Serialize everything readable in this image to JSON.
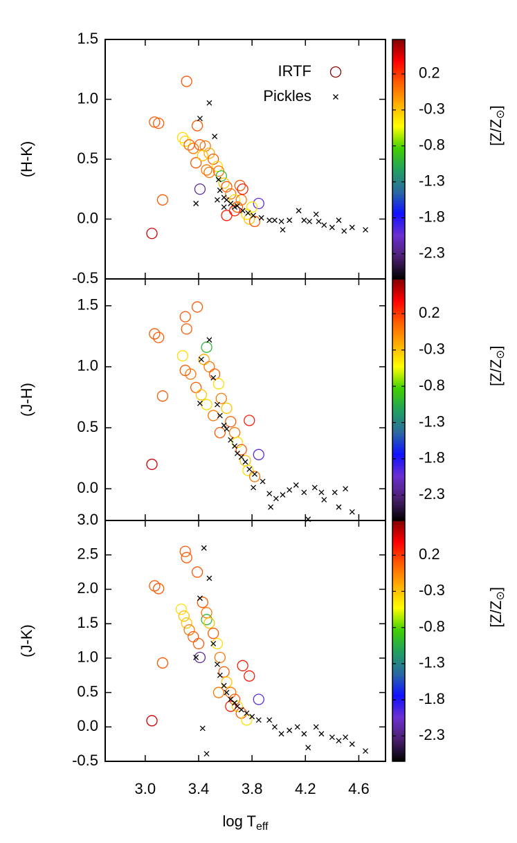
{
  "chart_data": [
    {
      "type": "scatter",
      "ylabel": "(H-K)",
      "legend": "top-right",
      "xlim": [
        2.7,
        4.8
      ],
      "xticks": [
        {
          "value": 3,
          "label": "3.0"
        },
        3.4,
        3.8,
        4.2,
        4.6
      ],
      "ylim": [
        -0.5,
        1.5
      ],
      "yticks": [
        -0.5,
        {
          "value": 0,
          "label": "0.0"
        },
        0.5,
        {
          "value": 1,
          "label": "1.0"
        },
        1.5
      ],
      "colorbar": {
        "label": "[Z/Z",
        "label_subscript": "⊙",
        "label_end": "]",
        "lim": [
          -2.65,
          0.68
        ],
        "ticks": [
          0.2,
          -0.3,
          -0.8,
          -1.3,
          -1.8,
          -2.3
        ],
        "colormap": [
          "#000000",
          "#4a2070",
          "#6a30d0",
          "#1010ff",
          "#2a6aa0",
          "#20a060",
          "#40d000",
          "#ffff00",
          "#ffb000",
          "#ff6000",
          "#ff0000",
          "#800000"
        ]
      },
      "series": [
        {
          "name": "IRTF",
          "marker": "circle",
          "color": "#8b0000",
          "x": [
            3.05,
            3.07,
            3.1,
            3.13,
            3.31,
            3.39,
            3.41,
            3.28,
            3.3,
            3.33,
            3.36,
            3.41,
            3.45,
            3.48,
            3.51,
            3.54,
            3.55,
            3.57,
            3.59,
            3.61,
            3.64,
            3.67,
            3.69,
            3.72,
            3.71,
            3.73,
            3.67,
            3.76,
            3.78,
            3.82,
            3.85,
            3.8,
            3.61,
            3.46,
            3.38,
            3.43,
            3.48
          ],
          "values": [
            -0.12,
            0.81,
            0.8,
            0.16,
            1.15,
            0.78,
            0.25,
            0.68,
            0.65,
            0.62,
            0.59,
            0.62,
            0.61,
            0.55,
            0.5,
            0.44,
            0.4,
            0.36,
            0.3,
            0.27,
            0.21,
            0.16,
            0.1,
            0.16,
            0.28,
            0.25,
            0.07,
            0.04,
            0.0,
            -0.02,
            0.13,
            0.1,
            0.03,
            0.41,
            0.47,
            0.53,
            0.39
          ],
          "z": [
            0.5,
            0.1,
            0.1,
            0.1,
            0.1,
            0.1,
            -2.2,
            -0.4,
            -0.4,
            0.1,
            0.0,
            0.1,
            0.0,
            -0.2,
            0.1,
            -0.4,
            0.0,
            -1.0,
            -0.3,
            0.1,
            0.0,
            -0.4,
            0.1,
            0.0,
            0.1,
            0.3,
            0.3,
            -0.4,
            -0.3,
            0.1,
            -2.0,
            -0.4,
            0.3,
            0.0,
            0.1,
            -0.3,
            0.0
          ]
        },
        {
          "name": "Pickles",
          "marker": "x",
          "color": "#000000",
          "x": [
            3.48,
            3.41,
            3.52,
            3.38,
            3.55,
            3.56,
            3.59,
            3.61,
            3.64,
            3.67,
            3.69,
            3.73,
            3.77,
            3.81,
            3.87,
            3.93,
            3.97,
            4.02,
            4.03,
            4.08,
            4.15,
            4.19,
            4.23,
            4.28,
            4.3,
            4.34,
            4.4,
            4.45,
            4.49,
            4.55,
            4.65,
            3.59,
            3.54
          ],
          "values": [
            0.97,
            0.84,
            0.69,
            0.13,
            0.33,
            0.24,
            0.18,
            0.16,
            0.13,
            0.1,
            0.11,
            0.07,
            0.05,
            0.03,
            0.01,
            -0.01,
            -0.01,
            -0.02,
            -0.09,
            -0.01,
            0.07,
            -0.01,
            -0.02,
            0.04,
            -0.02,
            -0.05,
            -0.07,
            -0.01,
            -0.1,
            -0.07,
            -0.09,
            0.1,
            0.16
          ]
        }
      ]
    },
    {
      "type": "scatter",
      "ylabel": "(J-H)",
      "xlim": [
        2.7,
        4.8
      ],
      "xticks": [
        {
          "value": 3,
          "label": "3.0"
        },
        3.4,
        3.8,
        4.2,
        4.6
      ],
      "ylim": [
        -0.26,
        1.72
      ],
      "yticks": [
        {
          "value": 0,
          "label": "0.0"
        },
        0.5,
        {
          "value": 1,
          "label": "1.0"
        },
        1.5
      ],
      "colorbar": {
        "label": "[Z/Z",
        "label_subscript": "⊙",
        "label_end": "]",
        "lim": [
          -2.65,
          0.68
        ],
        "ticks": [
          0.2,
          -0.3,
          -0.8,
          -1.3,
          -1.8,
          -2.3
        ],
        "colormap": [
          "#000000",
          "#4a2070",
          "#6a30d0",
          "#1010ff",
          "#2a6aa0",
          "#20a060",
          "#40d000",
          "#ffff00",
          "#ffb000",
          "#ff6000",
          "#ff0000",
          "#800000"
        ]
      },
      "series": [
        {
          "marker": "circle",
          "x": [
            3.05,
            3.07,
            3.1,
            3.13,
            3.3,
            3.31,
            3.39,
            3.46,
            3.28,
            3.3,
            3.34,
            3.38,
            3.42,
            3.44,
            3.48,
            3.52,
            3.55,
            3.57,
            3.61,
            3.64,
            3.67,
            3.69,
            3.72,
            3.75,
            3.78,
            3.77,
            3.82,
            3.85,
            3.56,
            3.51,
            3.46
          ],
          "values": [
            0.2,
            1.27,
            1.24,
            0.76,
            1.41,
            1.31,
            1.49,
            1.16,
            1.09,
            0.97,
            0.94,
            0.83,
            0.77,
            1.06,
            1.0,
            0.94,
            0.86,
            0.74,
            0.66,
            0.55,
            0.46,
            0.38,
            0.32,
            0.23,
            0.56,
            0.15,
            0.1,
            0.28,
            0.46,
            0.6,
            0.69
          ],
          "z": [
            0.5,
            0.1,
            0.1,
            0.1,
            0.1,
            0.1,
            0.1,
            -1.0,
            -0.4,
            0.1,
            0.0,
            0.1,
            -0.3,
            -0.2,
            0.0,
            0.1,
            -0.4,
            0.0,
            -0.3,
            0.1,
            0.0,
            -0.4,
            0.1,
            -0.3,
            0.3,
            -0.4,
            0.0,
            -2.0,
            0.1,
            0.0,
            -0.4
          ]
        },
        {
          "marker": "x",
          "color": "#000000",
          "x": [
            3.48,
            3.42,
            3.51,
            3.41,
            3.54,
            3.56,
            3.59,
            3.61,
            3.64,
            3.67,
            3.69,
            3.72,
            3.75,
            3.78,
            3.82,
            3.81,
            3.88,
            3.93,
            3.94,
            3.98,
            4.03,
            4.08,
            4.13,
            4.19,
            4.22,
            4.27,
            4.32,
            4.34,
            4.42,
            4.45,
            4.5,
            4.55
          ],
          "values": [
            1.22,
            1.06,
            0.91,
            0.7,
            0.69,
            0.6,
            0.52,
            0.49,
            0.4,
            0.35,
            0.29,
            0.26,
            0.22,
            0.16,
            0.12,
            0.01,
            0.06,
            -0.04,
            -0.15,
            -0.08,
            -0.05,
            -0.01,
            0.03,
            -0.03,
            -0.25,
            0.01,
            -0.03,
            -0.09,
            -0.03,
            -0.15,
            0.0,
            -0.19
          ]
        }
      ]
    },
    {
      "type": "scatter",
      "ylabel": "(J-K)",
      "xlabel": "log T",
      "xlabel_subscript": "eff",
      "xlim": [
        2.7,
        4.8
      ],
      "xticks": [
        {
          "value": 3,
          "label": "3.0"
        },
        3.4,
        3.8,
        4.2,
        4.6
      ],
      "ylim": [
        -0.5,
        3.0
      ],
      "yticks": [
        -0.5,
        {
          "value": 0,
          "label": "0.0"
        },
        0.5,
        {
          "value": 1,
          "label": "1.0"
        },
        1.5,
        {
          "value": 2,
          "label": "2.0"
        },
        2.5,
        {
          "value": 3,
          "label": "3.0"
        }
      ],
      "colorbar": {
        "label": "[Z/Z",
        "label_subscript": "⊙",
        "label_end": "]",
        "lim": [
          -2.65,
          0.68
        ],
        "ticks": [
          0.2,
          -0.3,
          -0.8,
          -1.3,
          -1.8,
          -2.3
        ],
        "colormap": [
          "#000000",
          "#4a2070",
          "#6a30d0",
          "#1010ff",
          "#2a6aa0",
          "#20a060",
          "#40d000",
          "#ffff00",
          "#ffb000",
          "#ff6000",
          "#ff0000",
          "#800000"
        ]
      },
      "series": [
        {
          "marker": "circle",
          "x": [
            3.05,
            3.07,
            3.1,
            3.13,
            3.3,
            3.31,
            3.39,
            3.41,
            3.46,
            3.27,
            3.29,
            3.31,
            3.33,
            3.36,
            3.4,
            3.43,
            3.46,
            3.48,
            3.51,
            3.54,
            3.56,
            3.59,
            3.61,
            3.64,
            3.67,
            3.69,
            3.72,
            3.73,
            3.78,
            3.76,
            3.85,
            3.64,
            3.55
          ],
          "values": [
            0.09,
            2.05,
            2.01,
            0.93,
            2.55,
            2.46,
            2.25,
            1.01,
            1.56,
            1.71,
            1.61,
            1.51,
            1.41,
            1.31,
            1.21,
            1.81,
            1.66,
            1.51,
            1.36,
            1.21,
            1.01,
            0.8,
            0.65,
            0.5,
            0.4,
            0.3,
            0.2,
            0.89,
            0.74,
            0.1,
            0.4,
            0.3,
            0.5
          ],
          "z": [
            0.5,
            0.1,
            0.1,
            0.1,
            0.1,
            0.1,
            0.1,
            -2.2,
            -1.0,
            -0.4,
            -0.3,
            -0.3,
            0.0,
            0.1,
            0.1,
            0.1,
            0.0,
            -0.3,
            0.1,
            -0.4,
            0.0,
            0.1,
            -0.3,
            0.0,
            0.1,
            -0.4,
            0.1,
            0.3,
            0.3,
            -0.4,
            -2.0,
            0.3,
            0.0
          ]
        },
        {
          "marker": "x",
          "color": "#000000",
          "x": [
            3.44,
            3.48,
            3.41,
            3.38,
            3.43,
            3.46,
            3.51,
            3.54,
            3.56,
            3.59,
            3.61,
            3.64,
            3.67,
            3.69,
            3.72,
            3.76,
            3.8,
            3.85,
            3.93,
            3.97,
            4.02,
            4.08,
            4.14,
            4.19,
            4.22,
            4.28,
            4.32,
            4.4,
            4.45,
            4.5,
            4.55,
            4.65
          ],
          "values": [
            2.6,
            2.16,
            1.87,
            1.01,
            -0.02,
            -0.39,
            1.21,
            0.91,
            0.75,
            0.6,
            0.5,
            0.4,
            0.35,
            0.3,
            0.25,
            0.2,
            0.15,
            0.1,
            0.1,
            0.0,
            -0.1,
            -0.05,
            0.0,
            -0.1,
            -0.3,
            0.0,
            -0.1,
            -0.15,
            -0.2,
            -0.15,
            -0.25,
            -0.35
          ]
        }
      ]
    }
  ]
}
